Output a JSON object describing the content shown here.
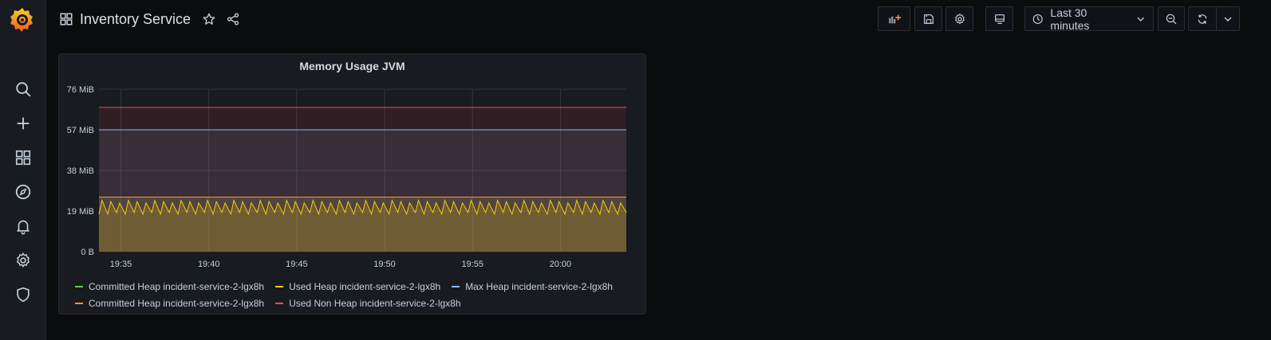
{
  "dashboard": {
    "title": "Inventory Service"
  },
  "toolbar": {
    "time_range": "Last 30 minutes"
  },
  "colors": {
    "committed_heap": "#73bf69",
    "used_heap": "#f2cc0c",
    "max_heap": "#8ab8ff",
    "committed_non_heap": "#ff9830",
    "used_non_heap": "#f2495c"
  },
  "sidebar": {
    "items": [
      {
        "icon": "search-icon"
      },
      {
        "icon": "plus-icon"
      },
      {
        "icon": "dashboards-icon"
      },
      {
        "icon": "explore-icon"
      },
      {
        "icon": "bell-icon"
      },
      {
        "icon": "gear-icon"
      },
      {
        "icon": "shield-icon"
      }
    ]
  },
  "panel": {
    "title": "Memory Usage JVM"
  },
  "chart_data": {
    "type": "area",
    "title": "Memory Usage JVM",
    "x_ticks": [
      "19:35",
      "19:40",
      "19:45",
      "19:50",
      "19:55",
      "20:00"
    ],
    "y_ticks": [
      "0 B",
      "19 MiB",
      "38 MiB",
      "57 MiB",
      "76 MiB"
    ],
    "ylim_mib": [
      0,
      76
    ],
    "x_range": [
      "19:33:45",
      "20:03:45"
    ],
    "grid": true,
    "legend_placement": "bottom",
    "series": [
      {
        "name": "Committed Heap incident-service-2-lgx8h",
        "color": "#73bf69",
        "value_mib": 25.5,
        "style": "flat"
      },
      {
        "name": "Used Heap incident-service-2-lgx8h",
        "color": "#f2cc0c",
        "min_mib": 17.5,
        "max_mib": 24,
        "style": "sawtooth",
        "cycles": 60
      },
      {
        "name": "Max Heap incident-service-2-lgx8h",
        "color": "#8ab8ff",
        "value_mib": 57,
        "style": "flat"
      },
      {
        "name": "Committed Heap incident-service-2-lgx8h",
        "color": "#ff9830",
        "value_mib": 25.5,
        "style": "flat"
      },
      {
        "name": "Used Non Heap incident-service-2-lgx8h",
        "color": "#f2495c",
        "value_mib": 67.5,
        "style": "flat"
      }
    ],
    "legend_rows": [
      [
        0,
        1,
        2
      ],
      [
        3,
        4
      ]
    ]
  }
}
